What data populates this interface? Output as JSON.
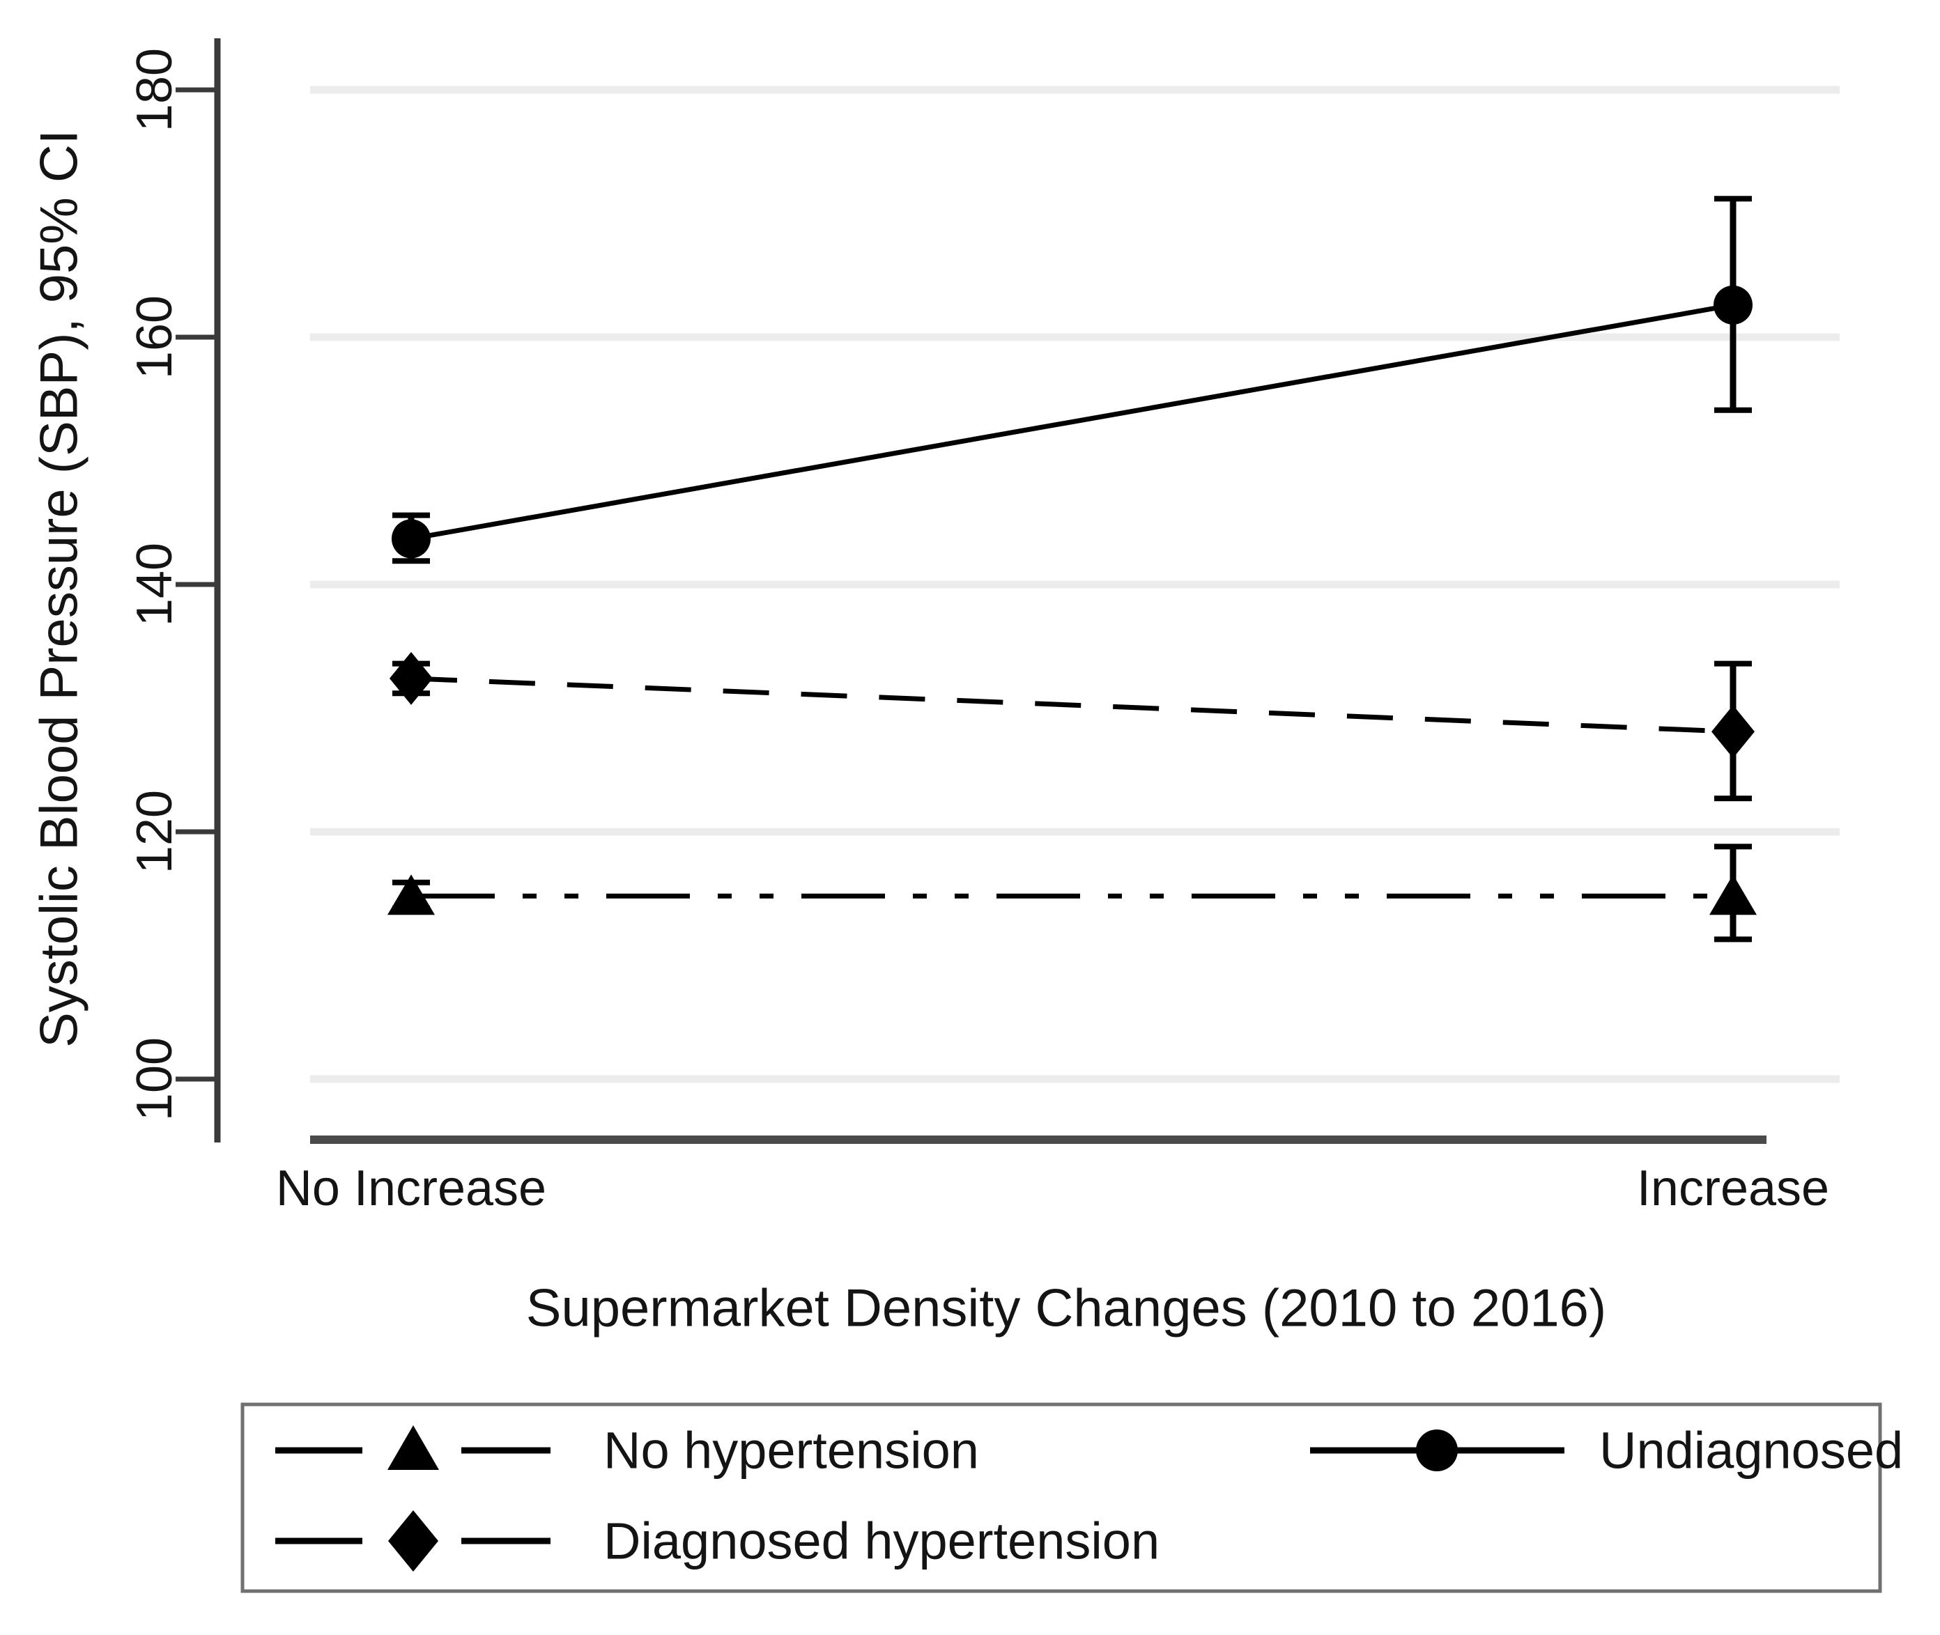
{
  "figure": {
    "background": "#ffffff",
    "text_color": "#141414",
    "series_color": "#000000",
    "axis_color": "#3a3a3a",
    "bottom_axis_color": "#4a4a4a",
    "grid_color": "#ececec",
    "legend_border_color": "#707070"
  },
  "chart_data": {
    "type": "line",
    "title": "",
    "xlabel": "Supermarket Density Changes (2010 to 2016)",
    "ylabel": "Systolic Blood Pressure (SBP), 95% CI",
    "categories": [
      "No Increase",
      "Increase"
    ],
    "y_ticks": [
      100,
      120,
      140,
      160,
      180
    ],
    "ylim": [
      95,
      184
    ],
    "grid": "horizontal light gridlines at each y tick",
    "legend_position": "boxed legend below chart, two columns",
    "error_bars": "95% confidence intervals with caps",
    "series": [
      {
        "name": "No hypertension",
        "marker": "triangle",
        "line_style": "dash-dot-dot",
        "values": [
          114.8,
          114.8
        ],
        "ci_low": [
          113.8,
          111.3
        ],
        "ci_high": [
          115.9,
          118.8
        ]
      },
      {
        "name": "Diagnosed hypertension",
        "marker": "diamond",
        "line_style": "long-dash",
        "values": [
          132.4,
          128.1
        ],
        "ci_low": [
          131.2,
          122.7
        ],
        "ci_high": [
          133.6,
          133.6
        ]
      },
      {
        "name": "Undiagnosed",
        "marker": "circle",
        "line_style": "solid",
        "values": [
          143.7,
          162.6
        ],
        "ci_low": [
          141.9,
          154.1
        ],
        "ci_high": [
          145.6,
          171.2
        ]
      }
    ]
  }
}
